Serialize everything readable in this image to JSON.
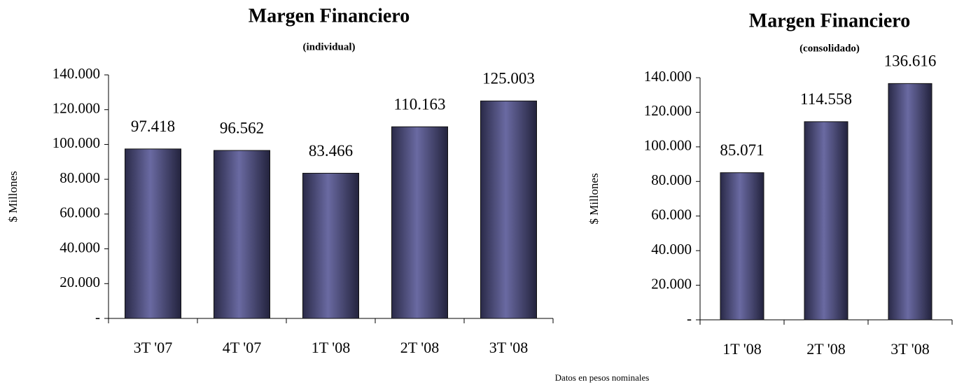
{
  "chart_data": [
    {
      "type": "bar",
      "title": "Margen Financiero",
      "subtitle": "(individual)",
      "y_label": "$ Millones",
      "categories": [
        "3T '07",
        "4T '07",
        "1T '08",
        "2T '08",
        "3T '08"
      ],
      "values": [
        97418,
        96562,
        83466,
        110163,
        125003
      ],
      "value_labels": [
        "97.418",
        "96.562",
        "83.466",
        "110.163",
        "125.003"
      ],
      "color": "#5c5c90",
      "ylim": [
        0,
        140000
      ],
      "yticks": [
        {
          "value": 0,
          "label": "-"
        },
        {
          "value": 20000,
          "label": "20.000"
        },
        {
          "value": 40000,
          "label": "40.000"
        },
        {
          "value": 60000,
          "label": "60.000"
        },
        {
          "value": 80000,
          "label": "80.000"
        },
        {
          "value": 100000,
          "label": "100.000"
        },
        {
          "value": 120000,
          "label": "120.000"
        },
        {
          "value": 140000,
          "label": "140.000"
        }
      ],
      "grid": false
    },
    {
      "type": "bar",
      "title": "Margen Financiero",
      "subtitle": "(consolidado)",
      "y_label": "$ Millones",
      "categories": [
        "1T '08",
        "2T '08",
        "3T '08"
      ],
      "values": [
        85071,
        114558,
        136616
      ],
      "value_labels": [
        "85.071",
        "114.558",
        "136.616"
      ],
      "color": "#5c5c90",
      "ylim": [
        0,
        140000
      ],
      "yticks": [
        {
          "value": 0,
          "label": "-"
        },
        {
          "value": 20000,
          "label": "20.000"
        },
        {
          "value": 40000,
          "label": "40.000"
        },
        {
          "value": 60000,
          "label": "60.000"
        },
        {
          "value": 80000,
          "label": "80.000"
        },
        {
          "value": 100000,
          "label": "100.000"
        },
        {
          "value": 120000,
          "label": "120.000"
        },
        {
          "value": 140000,
          "label": "140.000"
        }
      ],
      "grid": false
    }
  ],
  "footer": "Datos en pesos nominales"
}
